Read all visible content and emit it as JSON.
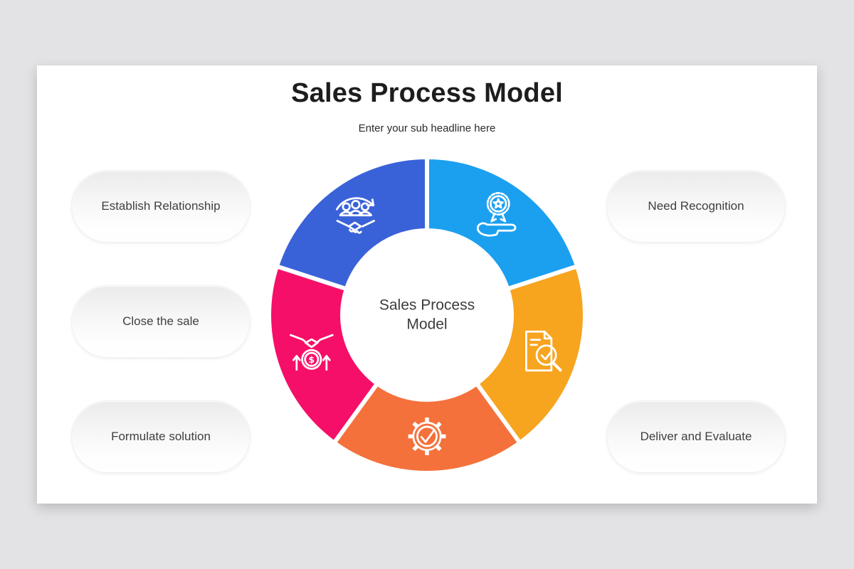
{
  "page": {
    "background": "#e3e2e4",
    "card_background": "#ffffff"
  },
  "header": {
    "title": "Sales Process Model",
    "subtitle": "Enter your sub headline here"
  },
  "pills": {
    "left": [
      "Establish Relationship",
      "Close the sale",
      "Formulate solution"
    ],
    "right": [
      "Need Recognition",
      "Deliver and Evaluate"
    ]
  },
  "donut": {
    "center_label_lines": [
      "Sales Process",
      "Model"
    ],
    "gap_color": "#ffffff",
    "segments": [
      {
        "icon": "hand-award-icon",
        "color": "#1ba0f0"
      },
      {
        "icon": "report-magnifier-icon",
        "color": "#f7a41f"
      },
      {
        "icon": "gear-check-icon",
        "color": "#f4713b"
      },
      {
        "icon": "money-handshake-icon",
        "color": "#f50f68"
      },
      {
        "icon": "team-handshake-icon",
        "color": "#3a62d8"
      }
    ]
  }
}
